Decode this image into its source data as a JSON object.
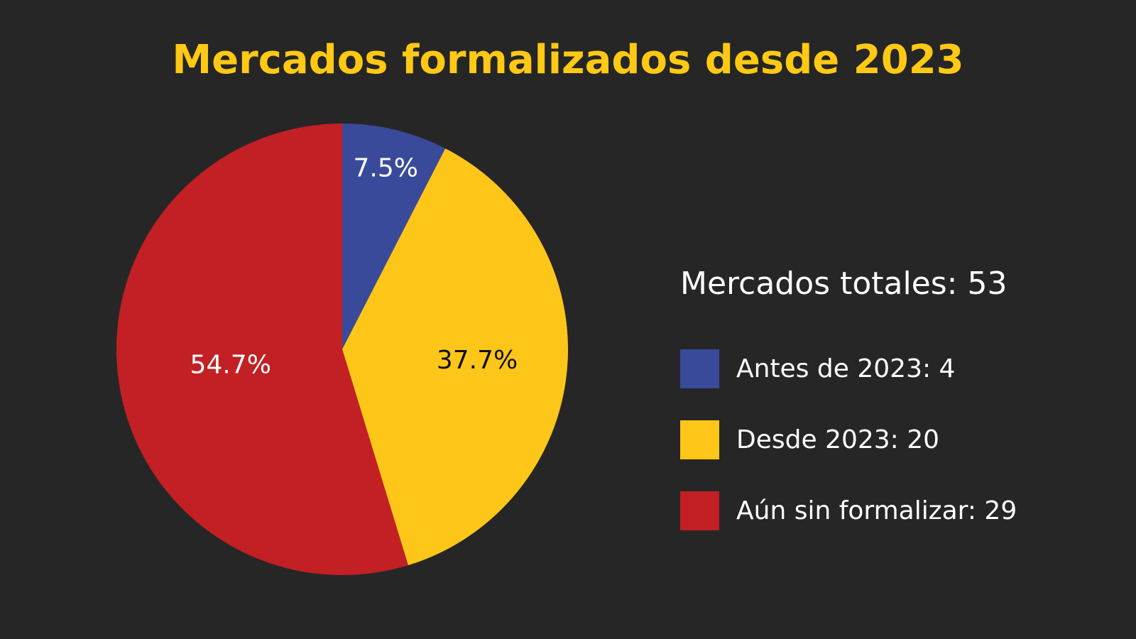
{
  "chart_data": {
    "type": "pie",
    "title": "Mercados formalizados desde 2023",
    "total_label": "Mercados totales: 53",
    "slices": [
      {
        "label": "Antes de 2023",
        "legend": "Antes de 2023: 4",
        "value": 4,
        "percent_label": "7.5%",
        "color": "#3A4A9A",
        "label_color": "#ffffff"
      },
      {
        "label": "Desde 2023",
        "legend": "Desde 2023: 20",
        "value": 20,
        "percent_label": "37.7%",
        "color": "#FFC61A",
        "label_color": "#111111"
      },
      {
        "label": "Aún sin formalizar",
        "legend": "Aún sin formalizar: 29",
        "value": 29,
        "percent_label": "54.7%",
        "color": "#C22024",
        "label_color": "#ffffff"
      }
    ],
    "legend_placement": "right"
  }
}
